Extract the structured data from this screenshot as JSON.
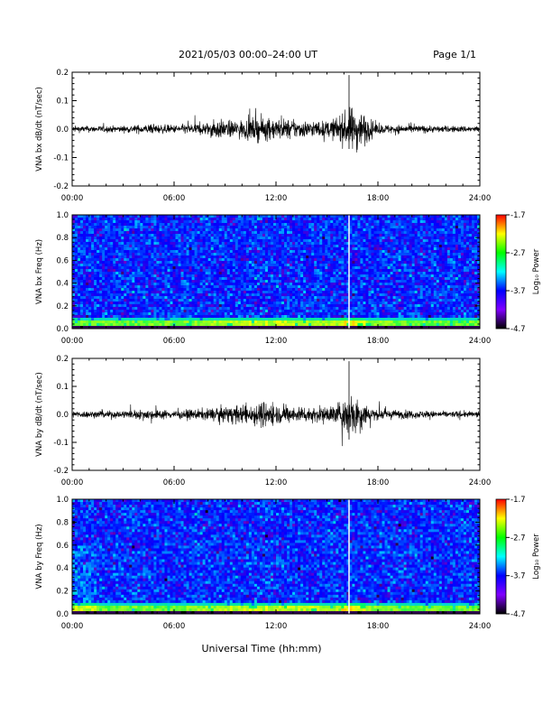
{
  "header": {
    "title": "2021/05/03  00:00–24:00 UT",
    "page": "Page 1/1"
  },
  "xlabel": "Universal Time (hh:mm)",
  "colorbar": {
    "ticks": [
      "-1.7",
      "-2.7",
      "-3.7",
      "-4.7"
    ],
    "label": "Log₁₀ Power",
    "colors": [
      "#ff0000",
      "#ffff00",
      "#00ff00",
      "#00ffff",
      "#0000ff",
      "#8000ff",
      "#000000"
    ]
  },
  "chart_data": [
    {
      "type": "line",
      "ylabel": "VNA bx dB/dt (nT/sec)",
      "xlim": [
        0,
        24
      ],
      "ylim": [
        -0.2,
        0.2
      ],
      "x_ticks": [
        "00:00",
        "06:00",
        "12:00",
        "18:00",
        "24:00"
      ],
      "y_ticks": [
        "0.2",
        "0.1",
        "0.0",
        "-0.1",
        "-0.2"
      ],
      "series": [
        {
          "values_desc": "noise amplitude envelope (nT/sec) vs UT hour",
          "envelope_x": [
            0,
            3,
            4.5,
            6,
            8,
            8.5,
            9,
            10,
            11,
            12,
            13,
            14,
            15,
            15.8,
            16.3,
            16.7,
            17,
            17.5,
            18,
            20,
            22,
            24
          ],
          "envelope_y": [
            0.012,
            0.012,
            0.018,
            0.015,
            0.025,
            0.04,
            0.03,
            0.035,
            0.045,
            0.04,
            0.035,
            0.03,
            0.03,
            0.05,
            0.075,
            0.085,
            0.07,
            0.04,
            0.018,
            0.015,
            0.012,
            0.012
          ],
          "spike": {
            "x": 16.3,
            "max": 0.19,
            "min": -0.07
          }
        }
      ]
    },
    {
      "type": "heatmap",
      "ylabel": "VNA bx Freq (Hz)",
      "xlim": [
        0,
        24
      ],
      "ylim": [
        0,
        1.0
      ],
      "x_ticks": [
        "00:00",
        "06:00",
        "12:00",
        "18:00",
        "24:00"
      ],
      "y_ticks": [
        "1.0",
        "0.8",
        "0.6",
        "0.4",
        "0.2",
        "0.0"
      ],
      "zlim": [
        -4.7,
        -1.7
      ],
      "white_line_x": 16.3
    },
    {
      "type": "line",
      "ylabel": "VNA by dB/dt (nT/sec)",
      "xlim": [
        0,
        24
      ],
      "ylim": [
        -0.2,
        0.2
      ],
      "x_ticks": [
        "00:00",
        "06:00",
        "12:00",
        "18:00",
        "24:00"
      ],
      "y_ticks": [
        "0.2",
        "0.1",
        "0.0",
        "-0.1",
        "-0.2"
      ],
      "series": [
        {
          "values_desc": "noise amplitude envelope (nT/sec) vs UT hour",
          "envelope_x": [
            0,
            3,
            4.5,
            6,
            8,
            9,
            10,
            11,
            11.5,
            12,
            13,
            14,
            15,
            15.8,
            16.3,
            16.7,
            17,
            17.5,
            18,
            20,
            22,
            24
          ],
          "envelope_y": [
            0.012,
            0.015,
            0.02,
            0.015,
            0.022,
            0.03,
            0.035,
            0.045,
            0.055,
            0.035,
            0.03,
            0.03,
            0.028,
            0.05,
            0.08,
            0.085,
            0.06,
            0.03,
            0.02,
            0.015,
            0.012,
            0.012
          ],
          "spike": {
            "x": 16.3,
            "max": 0.19,
            "min": -0.09
          }
        }
      ]
    },
    {
      "type": "heatmap",
      "ylabel": "VNA by Freq (Hz)",
      "xlim": [
        0,
        24
      ],
      "ylim": [
        0,
        1.0
      ],
      "x_ticks": [
        "00:00",
        "06:00",
        "12:00",
        "18:00",
        "24:00"
      ],
      "y_ticks": [
        "1.0",
        "0.8",
        "0.6",
        "0.4",
        "0.2",
        "0.0"
      ],
      "zlim": [
        -4.7,
        -1.7
      ],
      "white_line_x": 16.3
    }
  ]
}
